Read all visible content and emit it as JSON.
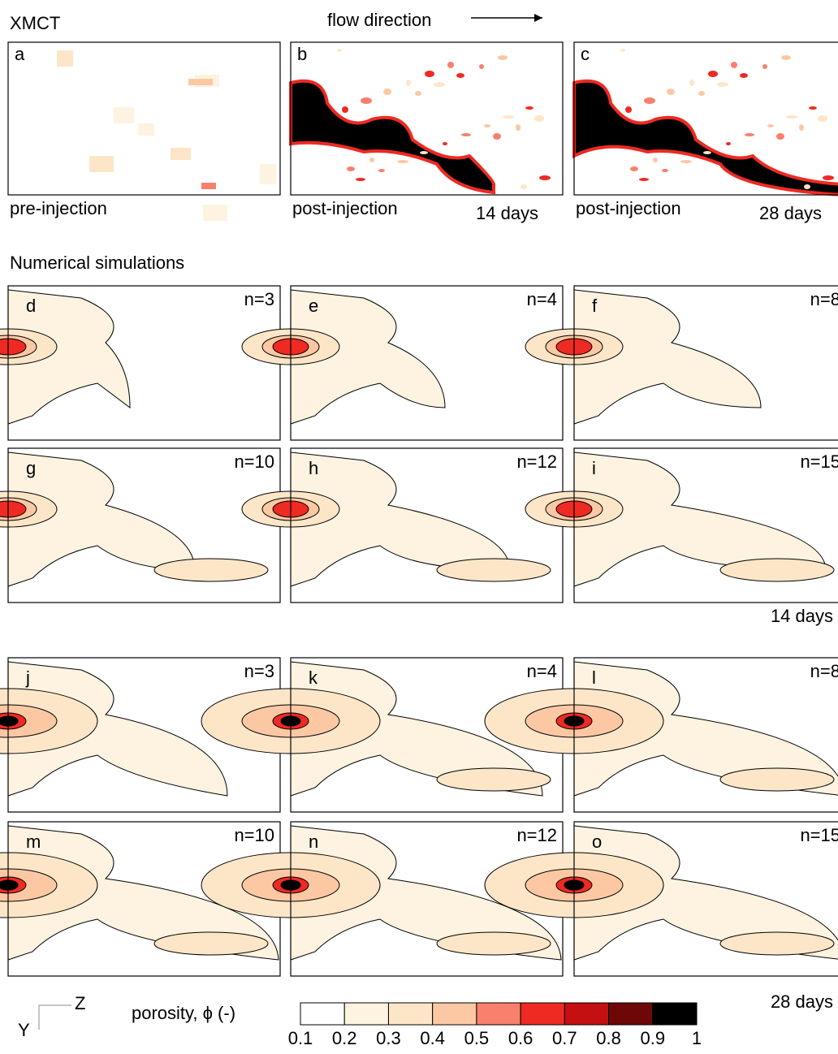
{
  "header": {
    "xmct_title": "XMCT",
    "flow_direction": "flow direction",
    "sim_title": "Numerical simulations"
  },
  "xmct_panels": [
    {
      "letter": "a",
      "caption": "pre-injection"
    },
    {
      "letter": "b",
      "caption": "post-injection",
      "time": "14 days"
    },
    {
      "letter": "c",
      "caption": "post-injection",
      "time": "28 days"
    }
  ],
  "simulation_panels": [
    {
      "letter": "d",
      "n": "n=3"
    },
    {
      "letter": "e",
      "n": "n=4"
    },
    {
      "letter": "f",
      "n": "n=8"
    },
    {
      "letter": "g",
      "n": "n=10"
    },
    {
      "letter": "h",
      "n": "n=12"
    },
    {
      "letter": "i",
      "n": "n=15"
    },
    {
      "letter": "j",
      "n": "n=3"
    },
    {
      "letter": "k",
      "n": "n=4"
    },
    {
      "letter": "l",
      "n": "n=8"
    },
    {
      "letter": "m",
      "n": "n=10"
    },
    {
      "letter": "n",
      "n": "n=12"
    },
    {
      "letter": "o",
      "n": "n=15"
    }
  ],
  "time_labels": [
    "14 days",
    "28 days"
  ],
  "axes": {
    "y": "Y",
    "z": "Z"
  },
  "colorbar": {
    "label": "porosity, ϕ (-)",
    "ticks": [
      "0.1",
      "0.2",
      "0.3",
      "0.4",
      "0.5",
      "0.6",
      "0.7",
      "0.8",
      "0.9",
      "1"
    ],
    "colors": [
      "#ffffff",
      "#fdf3e0",
      "#fde6c8",
      "#fcc8a4",
      "#f8806c",
      "#ee2a22",
      "#c41010",
      "#6e0808",
      "#000000"
    ]
  }
}
